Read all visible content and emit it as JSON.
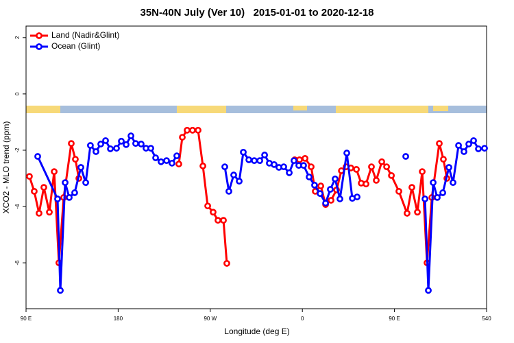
{
  "chart_data": {
    "type": "line",
    "title": "35N-40N July (Ver 10)   2015-01-01 to 2020-12-18",
    "x_label": "Longitude (deg E)",
    "y_label": "XCO2 - MLO trend (ppm)",
    "xlim": [
      90,
      540
    ],
    "xticks": [
      {
        "value": 90,
        "label": "90 E"
      },
      180,
      {
        "value": 270,
        "label": "90 W"
      },
      {
        "value": 360,
        "label": "0"
      },
      {
        "value": 450,
        "label": "90 E"
      },
      540
    ],
    "ylim": [
      -7.63,
      2.41
    ],
    "yticks": [
      2,
      0,
      -2,
      -4,
      -6
    ],
    "legend": "top-left",
    "series": [
      {
        "name": "Land (Nadir&Glint)",
        "color": "#ff0000",
        "x": [
          93.3,
          98.0,
          102.7,
          107.4,
          112.8,
          117.5,
          122.1,
          126.8,
          134.2,
          138.2,
          141.6,
          null,
          239.3,
          242.7,
          247.4,
          252.7,
          258.1,
          262.8,
          267.5,
          272.8,
          277.5,
          282.9,
          286.2,
          null,
          352.5,
          357.2,
          362.6,
          368.6,
          372.6,
          378.0,
          382.7,
          388.0,
          393.4,
          398.1,
          402.7,
          407.4,
          412.8,
          417.5,
          422.2,
          427.5,
          432.2,
          437.6,
          442.3,
          447.0,
          454.3,
          462.3,
          467.0,
          472.4,
          477.1,
          481.8,
          486.5,
          493.8,
          497.8,
          501.2
        ],
        "values": [
          -2.93,
          -3.46,
          -4.24,
          -3.32,
          -4.2,
          -2.76,
          -6.0,
          -3.68,
          -1.76,
          -2.32,
          -3.0,
          null,
          -2.49,
          -1.54,
          -1.29,
          -1.29,
          -1.29,
          -2.56,
          -3.98,
          -4.2,
          -4.49,
          -4.49,
          -6.02,
          null,
          -2.34,
          -2.34,
          -2.29,
          -2.59,
          -3.46,
          -3.27,
          -3.93,
          -3.78,
          -3.41,
          -2.73,
          -2.59,
          -2.63,
          -2.68,
          -3.17,
          -3.2,
          -2.59,
          -3.07,
          -2.41,
          -2.59,
          -2.9,
          -3.46,
          -4.24,
          -3.32,
          -4.2,
          -2.76,
          -6.0,
          -3.68,
          -1.76,
          -2.32,
          -3.0
        ]
      },
      {
        "name": "Ocean (Glint)",
        "color": "#0000ff",
        "x": [
          101.4,
          120.8,
          123.5,
          128.2,
          132.2,
          137.5,
          143.6,
          148.3,
          152.9,
          158.3,
          163.0,
          167.7,
          172.4,
          178.4,
          183.1,
          187.8,
          192.5,
          197.1,
          202.5,
          207.2,
          211.9,
          216.6,
          221.9,
          227.3,
          232.6,
          237.3,
          null,
          284.2,
          288.2,
          292.9,
          298.3,
          302.3,
          307.7,
          313.0,
          318.4,
          323.1,
          327.7,
          332.4,
          337.1,
          341.8,
          347.2,
          351.8,
          356.5,
          361.2,
          366.6,
          371.9,
          377.3,
          382.7,
          387.3,
          392.0,
          396.7,
          403.4,
          408.8,
          413.5,
          null,
          461.0,
          null,
          479.8,
          483.1,
          487.8,
          491.8,
          497.2,
          503.2,
          507.2,
          512.6,
          517.9,
          522.6,
          527.3,
          532.0,
          538.0
        ],
        "values": [
          -2.22,
          -3.73,
          -6.98,
          -3.15,
          -3.68,
          -3.51,
          -2.61,
          -3.15,
          -1.83,
          -2.05,
          -1.78,
          -1.66,
          -1.95,
          -1.93,
          -1.68,
          -1.8,
          -1.49,
          -1.76,
          -1.78,
          -1.93,
          -1.93,
          -2.27,
          -2.41,
          -2.37,
          -2.46,
          -2.2,
          null,
          -2.59,
          -3.46,
          -2.88,
          -3.1,
          -2.07,
          -2.34,
          -2.37,
          -2.37,
          -2.17,
          -2.46,
          -2.51,
          -2.61,
          -2.59,
          -2.8,
          -2.37,
          -2.54,
          -2.54,
          -2.95,
          -3.24,
          -3.54,
          -3.88,
          -3.39,
          -3.02,
          -3.73,
          -2.1,
          -3.71,
          -3.66,
          null,
          -2.22,
          null,
          -3.73,
          -6.98,
          -3.15,
          -3.68,
          -3.51,
          -2.61,
          -3.15,
          -1.83,
          -2.05,
          -1.78,
          -1.66,
          -1.95,
          -1.93
        ]
      }
    ]
  }
}
